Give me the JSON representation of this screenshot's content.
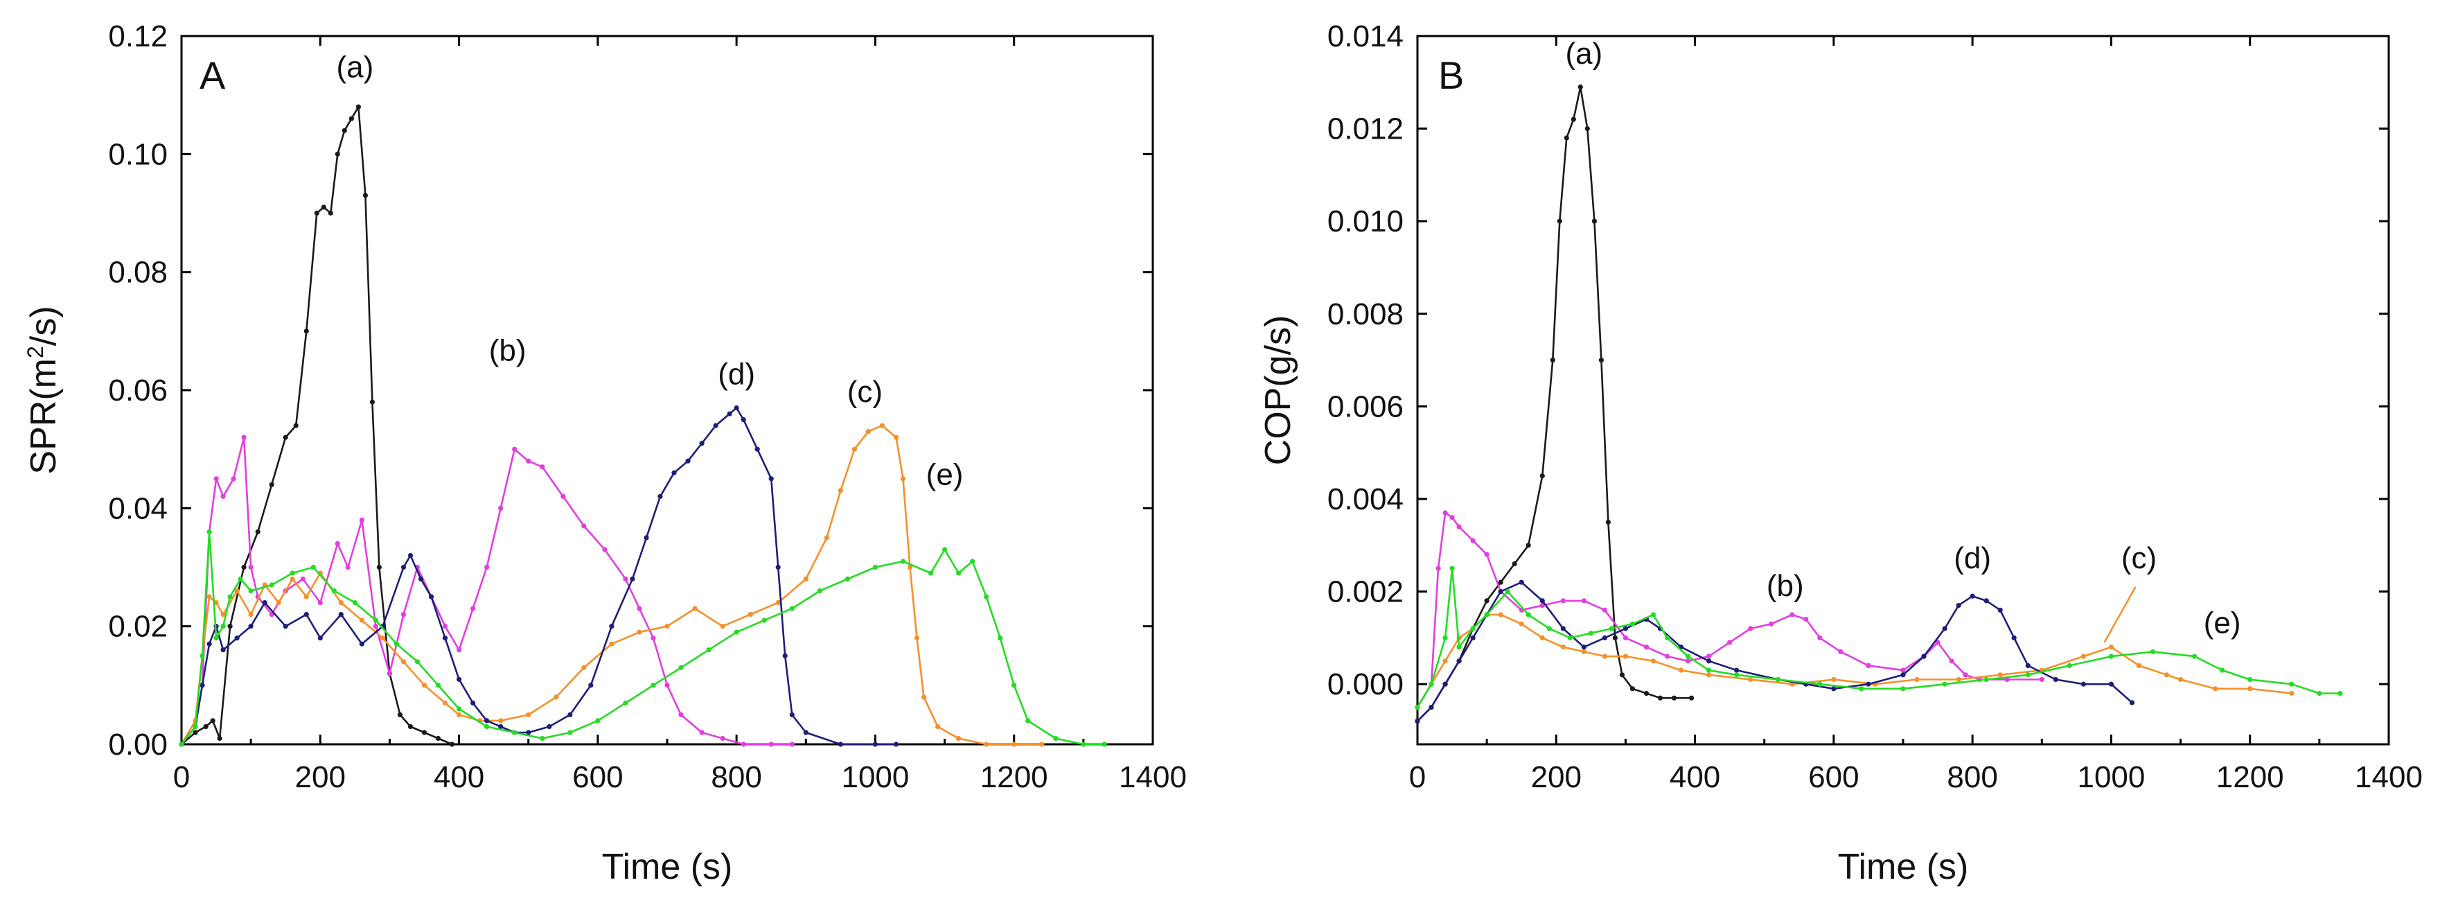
{
  "chart_data": [
    {
      "type": "line",
      "panel_label": "A",
      "title": "",
      "xlabel": "Time (s)",
      "ylabel_pre": "SPR(m",
      "ylabel_sup": "2",
      "ylabel_post": "/s)",
      "xlim": [
        0,
        1400
      ],
      "ylim": [
        0,
        0.12
      ],
      "x_ticks": [
        0,
        200,
        400,
        600,
        800,
        1000,
        1200,
        1400
      ],
      "x_tick_labels": [
        "0",
        "200",
        "400",
        "600",
        "800",
        "1000",
        "1200",
        "1400"
      ],
      "y_ticks": [
        0,
        0.02,
        0.04,
        0.06,
        0.08,
        0.1,
        0.12
      ],
      "y_tick_labels": [
        "0.00",
        "0.02",
        "0.04",
        "0.06",
        "0.08",
        "0.10",
        "0.12"
      ],
      "series": [
        {
          "name": "(a)",
          "color": "#1a1a1a",
          "label_at": [
            250,
            0.113
          ],
          "x": [
            0,
            20,
            35,
            45,
            55,
            70,
            90,
            110,
            130,
            150,
            165,
            180,
            195,
            205,
            215,
            225,
            235,
            245,
            255,
            265,
            275,
            285,
            300,
            315,
            330,
            350,
            370,
            390
          ],
          "y": [
            0,
            0.002,
            0.003,
            0.004,
            0.001,
            0.02,
            0.03,
            0.036,
            0.044,
            0.052,
            0.054,
            0.07,
            0.09,
            0.091,
            0.09,
            0.1,
            0.104,
            0.106,
            0.108,
            0.093,
            0.058,
            0.03,
            0.012,
            0.005,
            0.003,
            0.002,
            0.001,
            0
          ]
        },
        {
          "name": "(b)",
          "color": "#e23ee0",
          "label_at": [
            470,
            0.065
          ],
          "x": [
            0,
            20,
            30,
            40,
            50,
            60,
            75,
            90,
            100,
            110,
            130,
            150,
            175,
            200,
            225,
            240,
            260,
            280,
            300,
            320,
            340,
            360,
            380,
            400,
            420,
            440,
            460,
            480,
            500,
            520,
            550,
            580,
            610,
            640,
            660,
            680,
            700,
            720,
            750,
            780,
            810,
            850,
            880
          ],
          "y": [
            0,
            0.003,
            0.01,
            0.036,
            0.045,
            0.042,
            0.045,
            0.052,
            0.03,
            0.025,
            0.022,
            0.026,
            0.028,
            0.024,
            0.034,
            0.03,
            0.038,
            0.02,
            0.012,
            0.022,
            0.03,
            0.025,
            0.02,
            0.016,
            0.023,
            0.03,
            0.04,
            0.05,
            0.048,
            0.047,
            0.042,
            0.037,
            0.033,
            0.028,
            0.023,
            0.018,
            0.01,
            0.005,
            0.002,
            0.001,
            0,
            0,
            0
          ]
        },
        {
          "name": "(c)",
          "color": "#f5902a",
          "label_at": [
            985,
            0.058
          ],
          "x": [
            0,
            20,
            30,
            40,
            50,
            60,
            80,
            100,
            120,
            140,
            160,
            180,
            200,
            230,
            260,
            290,
            320,
            350,
            380,
            400,
            430,
            460,
            500,
            540,
            580,
            620,
            660,
            700,
            740,
            780,
            820,
            860,
            900,
            930,
            950,
            970,
            990,
            1010,
            1030,
            1040,
            1050,
            1060,
            1070,
            1090,
            1120,
            1160,
            1200,
            1240
          ],
          "y": [
            0,
            0.004,
            0.015,
            0.025,
            0.024,
            0.022,
            0.026,
            0.022,
            0.027,
            0.024,
            0.028,
            0.025,
            0.029,
            0.024,
            0.021,
            0.018,
            0.014,
            0.01,
            0.007,
            0.005,
            0.004,
            0.004,
            0.005,
            0.008,
            0.013,
            0.017,
            0.019,
            0.02,
            0.023,
            0.02,
            0.022,
            0.024,
            0.028,
            0.035,
            0.043,
            0.05,
            0.053,
            0.054,
            0.052,
            0.045,
            0.03,
            0.018,
            0.008,
            0.003,
            0.001,
            0,
            0,
            0
          ]
        },
        {
          "name": "(d)",
          "color": "#1e1e78",
          "label_at": [
            800,
            0.061
          ],
          "x": [
            0,
            20,
            30,
            40,
            50,
            60,
            80,
            100,
            120,
            150,
            180,
            200,
            230,
            260,
            290,
            320,
            330,
            345,
            360,
            380,
            400,
            420,
            440,
            460,
            480,
            500,
            530,
            560,
            590,
            620,
            650,
            670,
            690,
            710,
            730,
            750,
            770,
            790,
            800,
            810,
            830,
            850,
            860,
            870,
            880,
            900,
            950,
            1000,
            1030
          ],
          "y": [
            0,
            0.003,
            0.01,
            0.017,
            0.02,
            0.016,
            0.018,
            0.02,
            0.024,
            0.02,
            0.022,
            0.018,
            0.022,
            0.017,
            0.02,
            0.03,
            0.032,
            0.028,
            0.025,
            0.018,
            0.011,
            0.007,
            0.004,
            0.003,
            0.002,
            0.002,
            0.003,
            0.005,
            0.01,
            0.02,
            0.028,
            0.035,
            0.042,
            0.046,
            0.048,
            0.051,
            0.054,
            0.056,
            0.057,
            0.055,
            0.05,
            0.045,
            0.03,
            0.015,
            0.005,
            0.002,
            0,
            0,
            0
          ]
        },
        {
          "name": "(e)",
          "color": "#22dd22",
          "label_at": [
            1100,
            0.044
          ],
          "x": [
            0,
            20,
            30,
            40,
            50,
            60,
            70,
            85,
            100,
            130,
            160,
            190,
            220,
            250,
            280,
            310,
            340,
            370,
            400,
            440,
            480,
            520,
            560,
            600,
            640,
            680,
            720,
            760,
            800,
            840,
            880,
            920,
            960,
            1000,
            1040,
            1080,
            1100,
            1120,
            1140,
            1160,
            1180,
            1200,
            1220,
            1260,
            1300,
            1330
          ],
          "y": [
            0,
            0.003,
            0.015,
            0.036,
            0.018,
            0.02,
            0.025,
            0.028,
            0.026,
            0.027,
            0.029,
            0.03,
            0.026,
            0.024,
            0.021,
            0.017,
            0.014,
            0.01,
            0.006,
            0.003,
            0.002,
            0.001,
            0.002,
            0.004,
            0.007,
            0.01,
            0.013,
            0.016,
            0.019,
            0.021,
            0.023,
            0.026,
            0.028,
            0.03,
            0.031,
            0.029,
            0.033,
            0.029,
            0.031,
            0.025,
            0.018,
            0.01,
            0.004,
            0.001,
            0,
            0
          ]
        }
      ]
    },
    {
      "type": "line",
      "panel_label": "B",
      "title": "",
      "xlabel": "Time (s)",
      "ylabel": "COP(g/s)",
      "xlim": [
        0,
        1400
      ],
      "ylim": [
        -0.0013,
        0.014
      ],
      "x_ticks": [
        0,
        200,
        400,
        600,
        800,
        1000,
        1200,
        1400
      ],
      "x_tick_labels": [
        "0",
        "200",
        "400",
        "600",
        "800",
        "1000",
        "1200",
        "1400"
      ],
      "y_ticks": [
        0,
        0.002,
        0.004,
        0.006,
        0.008,
        0.01,
        0.012,
        0.014
      ],
      "y_tick_labels": [
        "0.000",
        "0.002",
        "0.004",
        "0.006",
        "0.008",
        "0.010",
        "0.012",
        "0.014"
      ],
      "series": [
        {
          "name": "(a)",
          "color": "#1a1a1a",
          "label_at": [
            240,
            0.0134
          ],
          "x": [
            0,
            20,
            40,
            60,
            80,
            100,
            120,
            140,
            160,
            180,
            195,
            205,
            215,
            225,
            235,
            245,
            255,
            265,
            275,
            285,
            295,
            310,
            330,
            350,
            370,
            395
          ],
          "y": [
            -0.0008,
            -0.0005,
            0,
            0.0005,
            0.0012,
            0.0018,
            0.0022,
            0.0026,
            0.003,
            0.0045,
            0.007,
            0.01,
            0.0118,
            0.0122,
            0.0129,
            0.012,
            0.01,
            0.007,
            0.0035,
            0.001,
            0.0002,
            -0.0001,
            -0.0002,
            -0.0003,
            -0.0003,
            -0.0003
          ]
        },
        {
          "name": "(b)",
          "color": "#e23ee0",
          "label_at": [
            530,
            0.0019
          ],
          "x": [
            0,
            20,
            30,
            40,
            50,
            60,
            80,
            100,
            120,
            150,
            180,
            210,
            240,
            270,
            300,
            330,
            360,
            390,
            420,
            450,
            480,
            510,
            540,
            560,
            580,
            610,
            650,
            700,
            730,
            750,
            770,
            790,
            810,
            850,
            900
          ],
          "y": [
            -0.0005,
            0,
            0.0025,
            0.0037,
            0.0036,
            0.0034,
            0.0031,
            0.0028,
            0.002,
            0.0016,
            0.0017,
            0.0018,
            0.0018,
            0.0016,
            0.001,
            0.0008,
            0.0006,
            0.0005,
            0.0006,
            0.0009,
            0.0012,
            0.0013,
            0.0015,
            0.0014,
            0.001,
            0.0007,
            0.0004,
            0.0003,
            0.0006,
            0.0009,
            0.0005,
            0.0002,
            0.0001,
            0.0001,
            0.0001
          ]
        },
        {
          "name": "(c)",
          "color": "#f5902a",
          "label_at": [
            1040,
            0.0025
          ],
          "x": [
            0,
            20,
            40,
            60,
            80,
            100,
            120,
            150,
            180,
            210,
            240,
            270,
            300,
            340,
            380,
            420,
            480,
            540,
            600,
            660,
            720,
            780,
            840,
            900,
            960,
            1000,
            1040,
            1080,
            1100,
            1150,
            1200,
            1260
          ],
          "y": [
            -0.0005,
            0,
            0.0005,
            0.001,
            0.0012,
            0.0015,
            0.0015,
            0.0013,
            0.001,
            0.0008,
            0.0007,
            0.0006,
            0.0006,
            0.0005,
            0.0003,
            0.0002,
            0.0001,
            0,
            0.0001,
            0,
            0.0001,
            0.0001,
            0.0002,
            0.0003,
            0.0006,
            0.0008,
            0.0004,
            0.0002,
            0.0001,
            -0.0001,
            -0.0001,
            -0.0002
          ]
        },
        {
          "name": "(d)",
          "color": "#1e1e78",
          "label_at": [
            800,
            0.0025
          ],
          "x": [
            0,
            20,
            40,
            60,
            80,
            100,
            120,
            150,
            180,
            210,
            240,
            270,
            300,
            330,
            350,
            380,
            420,
            460,
            520,
            560,
            600,
            650,
            700,
            730,
            760,
            780,
            800,
            820,
            840,
            860,
            880,
            920,
            960,
            1000,
            1030
          ],
          "y": [
            -0.0008,
            -0.0005,
            0,
            0.0005,
            0.001,
            0.0015,
            0.002,
            0.0022,
            0.0018,
            0.0012,
            0.0008,
            0.001,
            0.0012,
            0.0014,
            0.0012,
            0.0008,
            0.0005,
            0.0003,
            0.0001,
            0,
            -0.0001,
            0,
            0.0002,
            0.0006,
            0.0012,
            0.0017,
            0.0019,
            0.0018,
            0.0016,
            0.001,
            0.0004,
            0.0001,
            0,
            0,
            -0.0004
          ]
        },
        {
          "name": "(e)",
          "color": "#22dd22",
          "label_at": [
            1160,
            0.0011
          ],
          "x": [
            0,
            20,
            40,
            50,
            60,
            80,
            100,
            130,
            160,
            190,
            220,
            250,
            280,
            310,
            340,
            360,
            390,
            420,
            460,
            520,
            580,
            640,
            700,
            760,
            820,
            880,
            940,
            1000,
            1060,
            1120,
            1160,
            1200,
            1260,
            1300,
            1330
          ],
          "y": [
            -0.0005,
            0,
            0.001,
            0.0025,
            0.0008,
            0.0012,
            0.0015,
            0.002,
            0.0015,
            0.0012,
            0.001,
            0.0011,
            0.0012,
            0.0013,
            0.0015,
            0.001,
            0.0006,
            0.0003,
            0.0002,
            0.0001,
            0,
            -0.0001,
            -0.0001,
            0,
            0.0001,
            0.0002,
            0.0004,
            0.0006,
            0.0007,
            0.0006,
            0.0003,
            0.0001,
            0,
            -0.0002,
            -0.0002
          ]
        }
      ]
    }
  ]
}
